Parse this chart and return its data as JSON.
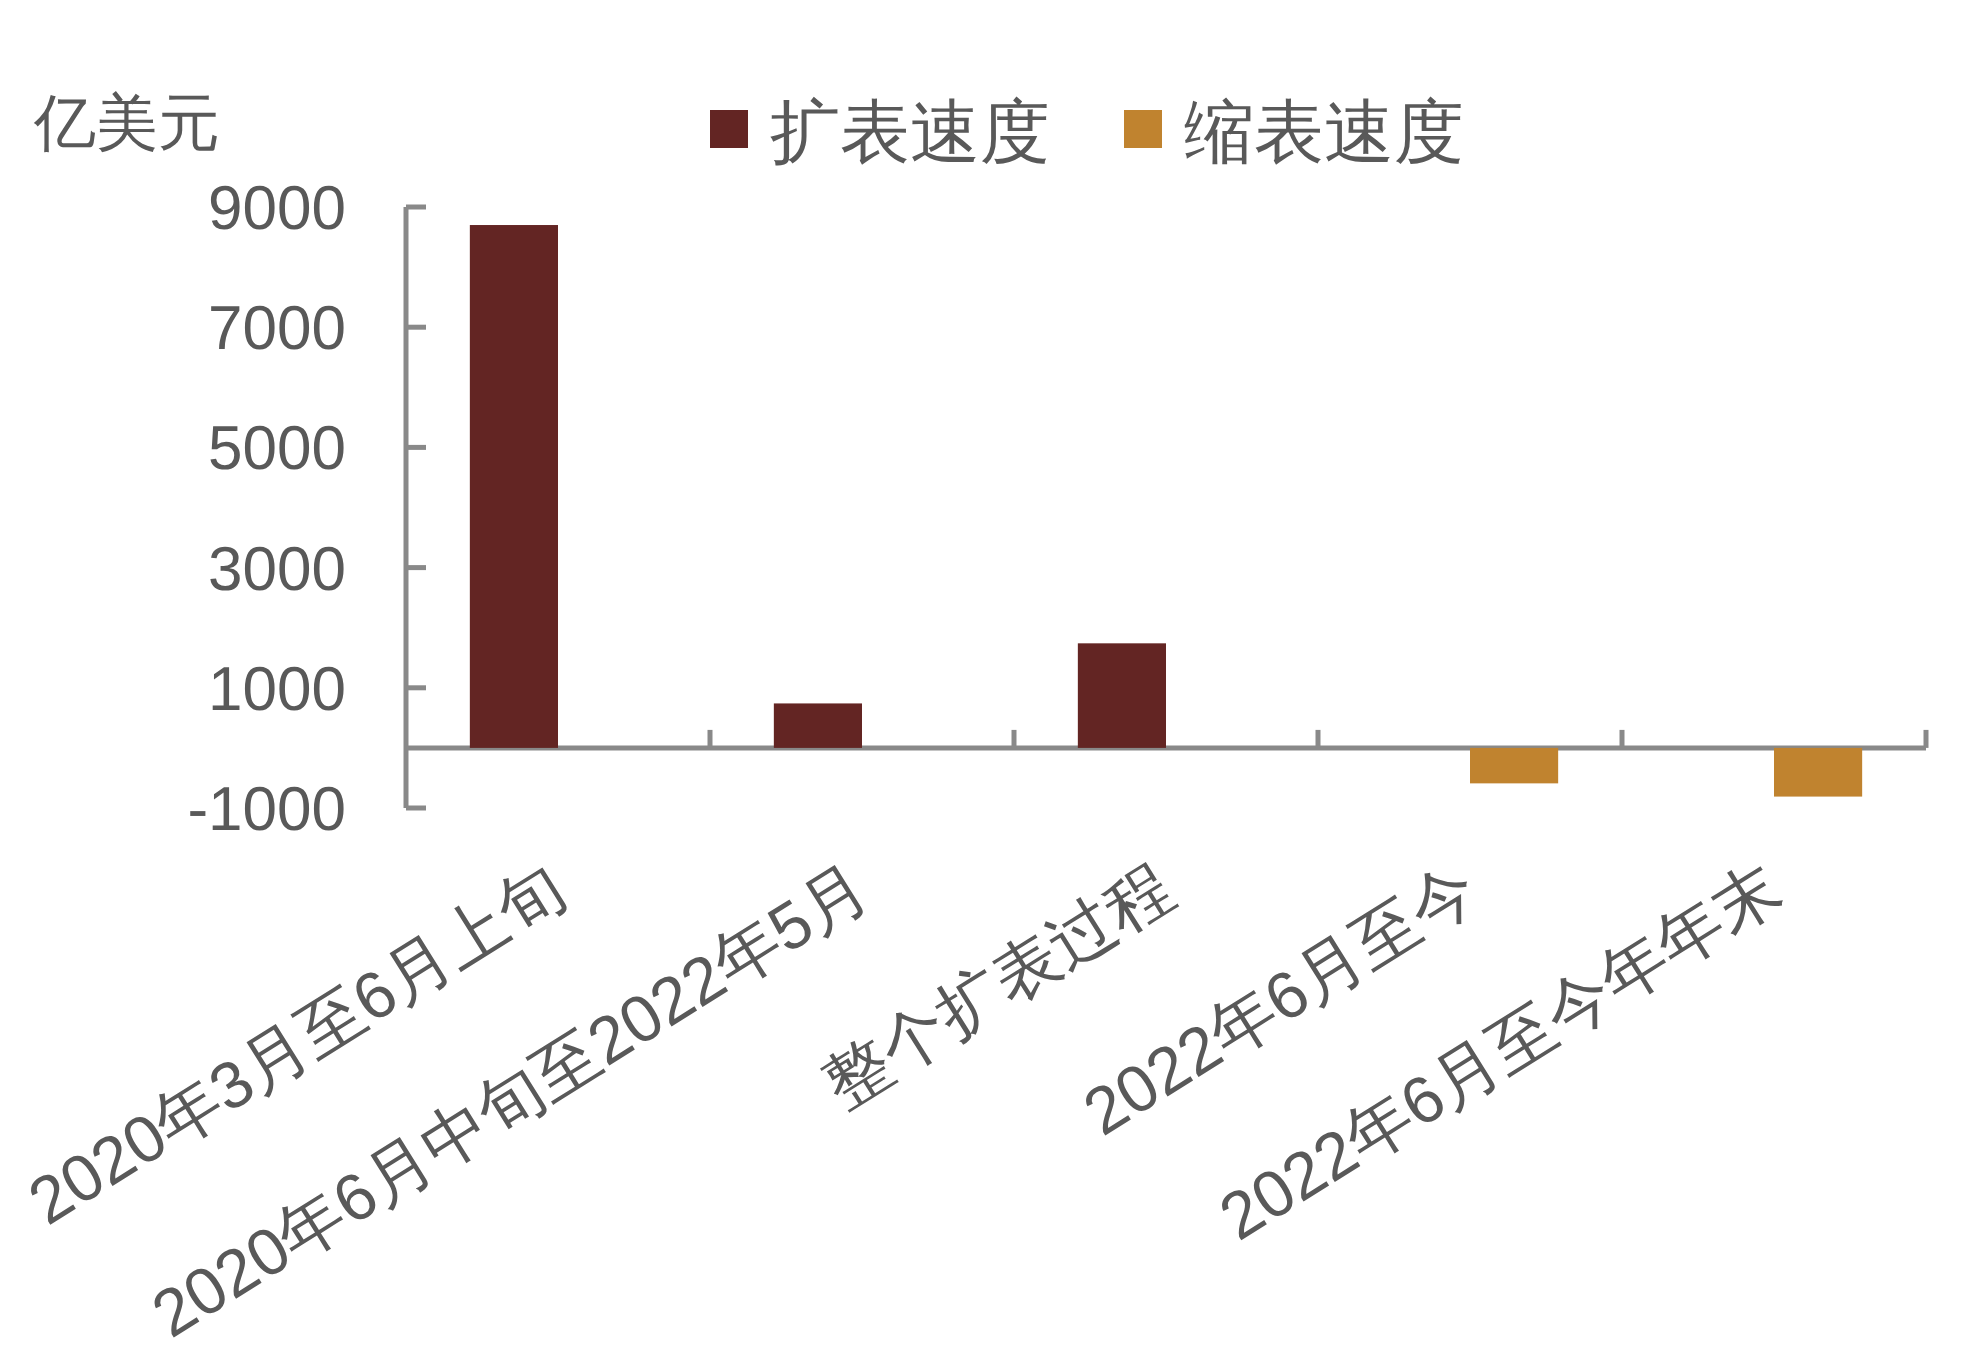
{
  "chart_data": {
    "type": "bar",
    "ylabel": "亿美元",
    "categories": [
      "2020年3月至6月上旬",
      "2020年6月中旬至2022年5月",
      "整个扩表过程",
      "2022年6月至今",
      "2022年6月至今年年末"
    ],
    "series": [
      {
        "name": "扩表速度",
        "color": "#632523",
        "values": [
          8700,
          740,
          1740,
          null,
          null
        ]
      },
      {
        "name": "缩表速度",
        "color": "#c0832f",
        "values": [
          null,
          null,
          null,
          -590,
          -810
        ]
      }
    ],
    "ylim": [
      -1000,
      9000
    ],
    "yticks": [
      -1000,
      1000,
      3000,
      5000,
      7000,
      9000
    ],
    "legend": "top"
  }
}
